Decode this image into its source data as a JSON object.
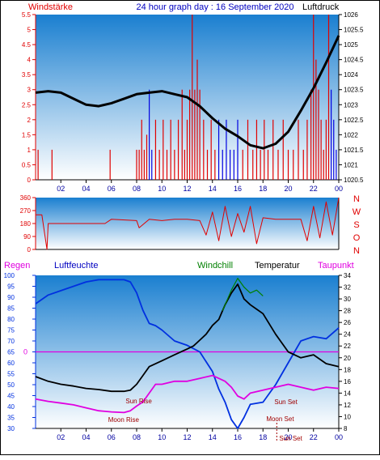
{
  "colors": {
    "bg_top": "#1a7fd0",
    "bg_bottom": "#ffffff",
    "wind": "#e00000",
    "gust_blue": "#0000e0",
    "pressure": "#000000",
    "direction": "#e00000",
    "humidity": "#0030e0",
    "temperature": "#000000",
    "windchill": "#008000",
    "dewpoint": "#e000e0",
    "zero_line": "#e000e0",
    "astro": "#a00000"
  },
  "top_chart": {
    "left_title": "Windstärke",
    "center_title": "24 hour graph day : 16 September 2020",
    "right_title": "Luftdruck",
    "left_ticks": [
      "0",
      "0.5",
      "1",
      "1.5",
      "2",
      "2.5",
      "3",
      "3.5",
      "4",
      "4.5",
      "5",
      "5.5"
    ],
    "right_ticks": [
      "1020.5",
      "1021",
      "1021.5",
      "1022",
      "1022.5",
      "1023",
      "1023.5",
      "1024",
      "1024.5",
      "1025",
      "1025.5",
      "1026"
    ],
    "x_ticks": [
      "02",
      "04",
      "06",
      "08",
      "10",
      "12",
      "14",
      "16",
      "18",
      "20",
      "22",
      "00"
    ]
  },
  "mid_chart": {
    "left_ticks": [
      "0",
      "90",
      "180",
      "270",
      "360"
    ],
    "right_letters": [
      "N",
      "W",
      "S",
      "O",
      "N"
    ]
  },
  "bottom_chart": {
    "legend": {
      "rain": "Regen",
      "humidity": "Luftfeuchte",
      "windchill": "Windchill",
      "temperature": "Temperatur",
      "dewpoint": "Taupunkt"
    },
    "zero_label": "0",
    "left_ticks": [
      "30",
      "35",
      "40",
      "45",
      "50",
      "55",
      "60",
      "65",
      "70",
      "75",
      "80",
      "85",
      "90",
      "95",
      "100"
    ],
    "right_ticks": [
      "8",
      "10",
      "12",
      "14",
      "16",
      "18",
      "20",
      "22",
      "24",
      "26",
      "28",
      "30",
      "32",
      "34"
    ],
    "x_ticks": [
      "02",
      "04",
      "06",
      "08",
      "10",
      "12",
      "14",
      "16",
      "18",
      "20",
      "22",
      "00"
    ],
    "astro": {
      "sun_rise": "Sun Rise",
      "sun_set": "Sun Set",
      "moon_rise": "Moon Rise",
      "moon_set": "Moon Set",
      "sun_set_bottom": "Sun Set"
    }
  },
  "chart_data": [
    {
      "type": "line",
      "name": "wind-pressure",
      "x_unit": "hour",
      "xlim": [
        0,
        24
      ],
      "y_left_lim": [
        0,
        5.5
      ],
      "y_right_lim": [
        1020.5,
        1026
      ],
      "pressure": {
        "x": [
          0,
          1,
          2,
          3,
          4,
          5,
          6,
          7,
          8,
          9,
          10,
          11,
          12,
          13,
          14,
          15,
          16,
          17,
          18,
          19,
          20,
          21,
          22,
          23,
          24
        ],
        "y": [
          1023.4,
          1023.45,
          1023.4,
          1023.2,
          1023.0,
          1022.95,
          1023.05,
          1023.2,
          1023.35,
          1023.4,
          1023.45,
          1023.35,
          1023.25,
          1022.95,
          1022.55,
          1022.2,
          1021.95,
          1021.65,
          1021.55,
          1021.7,
          1022.1,
          1022.8,
          1023.55,
          1024.4,
          1025.3
        ]
      },
      "wind_bars": {
        "x": [
          0.2,
          1.3,
          5.9,
          8.0,
          8.2,
          8.4,
          8.6,
          8.8,
          9.0,
          9.2,
          9.5,
          9.8,
          10.1,
          10.4,
          10.7,
          11.0,
          11.3,
          11.6,
          11.8,
          12.0,
          12.2,
          12.4,
          12.6,
          12.8,
          13.0,
          13.3,
          13.6,
          13.9,
          14.2,
          14.5,
          14.8,
          15.1,
          15.4,
          15.7,
          16.0,
          16.4,
          16.8,
          17.2,
          17.5,
          17.8,
          18.1,
          18.4,
          18.8,
          19.2,
          19.6,
          20.0,
          20.4,
          20.8,
          21.2,
          21.5,
          21.8,
          22.0,
          22.2,
          22.4,
          22.6,
          22.8,
          23.0,
          23.2,
          23.4,
          23.6,
          23.8
        ],
        "y": [
          1,
          1,
          1,
          1,
          1,
          2,
          1,
          1.5,
          3,
          1,
          2,
          1,
          2,
          1,
          2,
          1,
          2,
          3,
          1,
          2,
          3,
          5.5,
          3,
          4,
          3,
          2,
          1,
          2,
          1,
          2,
          1,
          2,
          1,
          1,
          2,
          1,
          2,
          1,
          2,
          1,
          2,
          1,
          2,
          1,
          2,
          1,
          1,
          2,
          1,
          2,
          3,
          5.5,
          4,
          3,
          2,
          1,
          2,
          5.5,
          3,
          2,
          1
        ]
      }
    },
    {
      "type": "line",
      "name": "wind-direction",
      "xlim": [
        0,
        24
      ],
      "ylim": [
        0,
        360
      ],
      "x": [
        0,
        0.5,
        0.9,
        1.0,
        1.5,
        2,
        4,
        5.5,
        6,
        8,
        8.2,
        9,
        10,
        11,
        12,
        13,
        13.5,
        14,
        14.5,
        15,
        15.5,
        16,
        16.5,
        17,
        17.5,
        18,
        19,
        20,
        21,
        21.5,
        22,
        22.5,
        23,
        23.5,
        24
      ],
      "y": [
        240,
        240,
        0,
        180,
        180,
        180,
        180,
        180,
        210,
        200,
        150,
        210,
        200,
        210,
        210,
        200,
        100,
        260,
        60,
        300,
        90,
        250,
        120,
        300,
        40,
        220,
        210,
        210,
        210,
        60,
        300,
        80,
        330,
        100,
        360
      ]
    },
    {
      "type": "line",
      "name": "humidity-temperature",
      "xlim": [
        0,
        24
      ],
      "y_left_lim": [
        30,
        100
      ],
      "y_right_lim": [
        8,
        34
      ],
      "series": [
        {
          "name": "Luftfeuchte",
          "axis": "left",
          "x": [
            0,
            1,
            2,
            3,
            4,
            5,
            6,
            7,
            7.5,
            8,
            8.5,
            9,
            9.5,
            10,
            11,
            12,
            13,
            14,
            14.5,
            15,
            15.5,
            16,
            16.5,
            17,
            18,
            19,
            20,
            21,
            22,
            23,
            24
          ],
          "y": [
            87,
            91,
            93,
            95,
            97,
            98,
            98,
            98,
            97,
            92,
            84,
            78,
            77,
            75,
            70,
            68,
            65,
            56,
            48,
            42,
            34,
            30,
            35,
            41,
            42,
            50,
            60,
            70,
            72,
            71,
            76
          ]
        },
        {
          "name": "Temperatur",
          "axis": "right",
          "x": [
            0,
            1,
            2,
            3,
            4,
            5,
            6,
            7,
            7.5,
            8,
            8.5,
            9,
            10,
            11,
            12,
            12.5,
            13,
            13.5,
            14,
            14.5,
            15,
            15.5,
            16,
            16.5,
            17,
            18,
            19,
            20,
            21,
            22,
            23,
            24
          ],
          "y": [
            16.8,
            16,
            15.5,
            15.2,
            14.8,
            14.6,
            14.3,
            14.3,
            14.5,
            15.5,
            17,
            18.5,
            19.5,
            20.5,
            21.5,
            22,
            23,
            24,
            25.5,
            26.5,
            29,
            31,
            32.5,
            30,
            29,
            27.5,
            24,
            21,
            20,
            20.5,
            19,
            18.5
          ]
        },
        {
          "name": "Windchill",
          "axis": "right",
          "x": [
            14.8,
            15,
            15.5,
            16,
            16.5,
            17,
            17.5,
            18
          ],
          "y": [
            28,
            29,
            31.5,
            33.5,
            32,
            31,
            31.5,
            30.5
          ]
        },
        {
          "name": "Taupunkt",
          "axis": "right",
          "x": [
            0,
            1,
            2,
            3,
            4,
            5,
            6,
            7,
            7.5,
            8,
            8.5,
            9,
            9.5,
            10,
            11,
            12,
            13,
            14,
            14.5,
            15,
            15.5,
            16,
            16.5,
            17,
            18,
            19,
            20,
            21,
            22,
            23,
            24
          ],
          "y": [
            13,
            12.6,
            12.3,
            12,
            11.5,
            11,
            10.8,
            10.7,
            11,
            11.8,
            12.5,
            14,
            15.5,
            15.5,
            16,
            16,
            16.5,
            17,
            16.5,
            16,
            15,
            13.5,
            13,
            14,
            14.5,
            15,
            15.5,
            15,
            14.5,
            15,
            14.8
          ]
        }
      ],
      "astro": {
        "sun_rise": 7.0,
        "sun_set": 19.8,
        "moon_rise": 6.0,
        "moon_set": 18.9
      }
    }
  ]
}
